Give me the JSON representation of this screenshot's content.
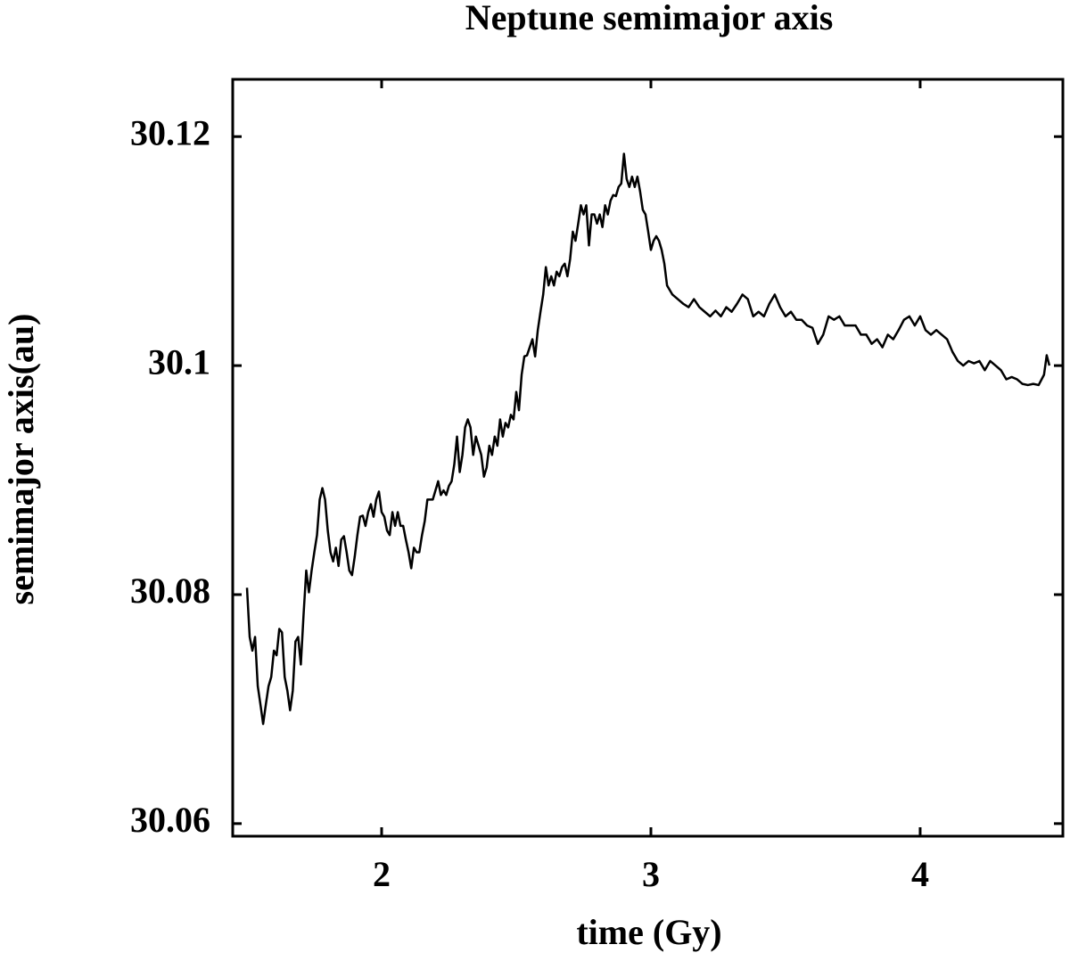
{
  "chart_data": {
    "type": "line",
    "title": "Neptune semimajor axis",
    "x_label": "time (Gy)",
    "y_label": "semimajor axis(au)",
    "color": "#000000",
    "xlim": [
      1.447,
      4.53
    ],
    "ylim": [
      30.0589,
      30.125
    ],
    "xticks": [
      2,
      3,
      4
    ],
    "yticks": [
      30.06,
      30.08,
      30.1,
      30.12
    ],
    "x": [
      1.5,
      1.51,
      1.52,
      1.53,
      1.54,
      1.55,
      1.56,
      1.57,
      1.58,
      1.59,
      1.6,
      1.61,
      1.62,
      1.63,
      1.64,
      1.65,
      1.66,
      1.67,
      1.68,
      1.69,
      1.7,
      1.71,
      1.72,
      1.73,
      1.74,
      1.75,
      1.76,
      1.77,
      1.78,
      1.79,
      1.8,
      1.81,
      1.82,
      1.83,
      1.84,
      1.85,
      1.86,
      1.87,
      1.88,
      1.89,
      1.9,
      1.91,
      1.92,
      1.93,
      1.94,
      1.95,
      1.96,
      1.97,
      1.98,
      1.99,
      2.0,
      2.01,
      2.02,
      2.03,
      2.04,
      2.05,
      2.06,
      2.07,
      2.08,
      2.09,
      2.1,
      2.11,
      2.12,
      2.13,
      2.14,
      2.15,
      2.16,
      2.17,
      2.18,
      2.19,
      2.2,
      2.21,
      2.22,
      2.23,
      2.24,
      2.25,
      2.26,
      2.27,
      2.28,
      2.29,
      2.3,
      2.31,
      2.32,
      2.33,
      2.34,
      2.35,
      2.36,
      2.37,
      2.38,
      2.39,
      2.4,
      2.41,
      2.42,
      2.43,
      2.44,
      2.45,
      2.46,
      2.47,
      2.48,
      2.49,
      2.5,
      2.51,
      2.52,
      2.53,
      2.54,
      2.55,
      2.56,
      2.57,
      2.58,
      2.59,
      2.6,
      2.61,
      2.62,
      2.63,
      2.64,
      2.65,
      2.66,
      2.67,
      2.68,
      2.69,
      2.7,
      2.71,
      2.72,
      2.73,
      2.74,
      2.75,
      2.76,
      2.77,
      2.78,
      2.79,
      2.8,
      2.81,
      2.82,
      2.83,
      2.84,
      2.85,
      2.86,
      2.87,
      2.88,
      2.89,
      2.9,
      2.91,
      2.92,
      2.93,
      2.94,
      2.95,
      2.96,
      2.97,
      2.98,
      2.99,
      3.0,
      3.01,
      3.02,
      3.03,
      3.04,
      3.05,
      3.06,
      3.08,
      3.1,
      3.12,
      3.14,
      3.16,
      3.18,
      3.2,
      3.22,
      3.24,
      3.26,
      3.28,
      3.3,
      3.32,
      3.34,
      3.36,
      3.38,
      3.4,
      3.42,
      3.44,
      3.46,
      3.48,
      3.5,
      3.52,
      3.54,
      3.56,
      3.58,
      3.6,
      3.62,
      3.64,
      3.66,
      3.68,
      3.7,
      3.72,
      3.74,
      3.76,
      3.78,
      3.8,
      3.82,
      3.84,
      3.86,
      3.88,
      3.9,
      3.92,
      3.94,
      3.96,
      3.98,
      4.0,
      4.02,
      4.04,
      4.06,
      4.08,
      4.1,
      4.12,
      4.14,
      4.16,
      4.18,
      4.2,
      4.22,
      4.24,
      4.26,
      4.28,
      4.3,
      4.32,
      4.34,
      4.36,
      4.38,
      4.4,
      4.42,
      4.44,
      4.46,
      4.47,
      4.48
    ],
    "values": [
      30.0806,
      30.0763,
      30.0751,
      30.0763,
      30.072,
      30.0704,
      30.0687,
      30.0704,
      30.072,
      30.0728,
      30.0751,
      30.0747,
      30.077,
      30.0767,
      30.0728,
      30.0716,
      30.0699,
      30.0716,
      30.0759,
      30.0763,
      30.0739,
      30.0782,
      30.0821,
      30.0802,
      30.0821,
      30.0837,
      30.0852,
      30.0883,
      30.0893,
      30.0883,
      30.0856,
      30.0837,
      30.0829,
      30.0841,
      30.0825,
      30.0848,
      30.0851,
      30.0837,
      30.0821,
      30.0817,
      30.0833,
      30.0852,
      30.0868,
      30.0869,
      30.086,
      30.0872,
      30.0879,
      30.0868,
      30.0883,
      30.089,
      30.0872,
      30.0868,
      30.0856,
      30.0852,
      30.0872,
      30.086,
      30.0872,
      30.086,
      30.086,
      30.0848,
      30.0837,
      30.0823,
      30.0841,
      30.0837,
      30.0837,
      30.0852,
      30.0864,
      30.0883,
      30.0883,
      30.0883,
      30.0891,
      30.0899,
      30.0887,
      30.0891,
      30.0887,
      30.0895,
      30.0899,
      30.0914,
      30.0938,
      30.0907,
      30.0922,
      30.0946,
      30.0953,
      30.0946,
      30.0922,
      30.0938,
      30.093,
      30.0922,
      30.0903,
      30.0911,
      30.093,
      30.0922,
      30.0938,
      30.093,
      30.0953,
      30.0938,
      30.095,
      30.0946,
      30.0957,
      30.0953,
      30.0977,
      30.0961,
      30.0992,
      30.1008,
      30.1009,
      30.1016,
      30.1023,
      30.1008,
      30.1031,
      30.1047,
      30.1062,
      30.1086,
      30.107,
      30.1078,
      30.107,
      30.1082,
      30.1078,
      30.1086,
      30.1089,
      30.1078,
      30.1093,
      30.1117,
      30.1109,
      30.1124,
      30.114,
      30.1132,
      30.114,
      30.1105,
      30.1132,
      30.1132,
      30.1124,
      30.1132,
      30.1121,
      30.114,
      30.1132,
      30.1144,
      30.1149,
      30.1148,
      30.1156,
      30.1159,
      30.1185,
      30.1163,
      30.1156,
      30.1165,
      30.1156,
      30.1165,
      30.1152,
      30.1136,
      30.1132,
      30.1117,
      30.1101,
      30.1109,
      30.1113,
      30.1109,
      30.1101,
      30.1089,
      30.107,
      30.1062,
      30.1058,
      30.1054,
      30.1051,
      30.1058,
      30.1051,
      30.1047,
      30.1043,
      30.1048,
      30.1043,
      30.1051,
      30.1047,
      30.1054,
      30.1062,
      30.1058,
      30.1043,
      30.1047,
      30.1043,
      30.1054,
      30.1062,
      30.1051,
      30.1043,
      30.1047,
      30.104,
      30.104,
      30.1035,
      30.1033,
      30.1019,
      30.1027,
      30.1043,
      30.104,
      30.1043,
      30.1035,
      30.1035,
      30.1035,
      30.1027,
      30.1027,
      30.1019,
      30.1023,
      30.1016,
      30.1027,
      30.1023,
      30.1031,
      30.104,
      30.1043,
      30.1035,
      30.1043,
      30.1031,
      30.1027,
      30.1031,
      30.1027,
      30.1023,
      30.1012,
      30.1004,
      30.1,
      30.1004,
      30.1002,
      30.1004,
      30.0996,
      30.1004,
      30.1,
      30.0996,
      30.0988,
      30.099,
      30.0988,
      30.0984,
      30.0983,
      30.0984,
      30.0983,
      30.0992,
      30.1009,
      30.1
    ]
  }
}
